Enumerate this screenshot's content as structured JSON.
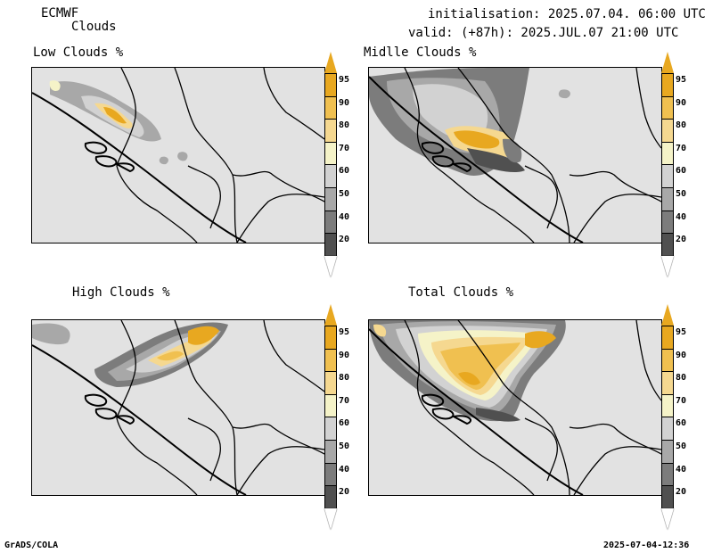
{
  "header": {
    "model": "ECMWF",
    "field": "Clouds",
    "init": "initialisation: 2025.07.04. 06:00 UTC",
    "valid": "valid: (+87h): 2025.JUL.07 21:00 UTC"
  },
  "panels": [
    {
      "title": "Low Clouds %"
    },
    {
      "title": "Midlle Clouds %"
    },
    {
      "title": "High Clouds %"
    },
    {
      "title": "Total Clouds %"
    }
  ],
  "colorbar": {
    "levels": [
      "95",
      "90",
      "80",
      "70",
      "60",
      "50",
      "40",
      "20"
    ],
    "colors": [
      "#e8a820",
      "#f0c050",
      "#f5d890",
      "#f5f3c8",
      "#d2d2d2",
      "#a8a8a8",
      "#7c7c7c",
      "#505050"
    ],
    "top_color": "#e8a820",
    "bottom_color": "#ffffff"
  },
  "footer": {
    "left": "GrADS/COLA",
    "right": "2025-07-04-12:36"
  }
}
